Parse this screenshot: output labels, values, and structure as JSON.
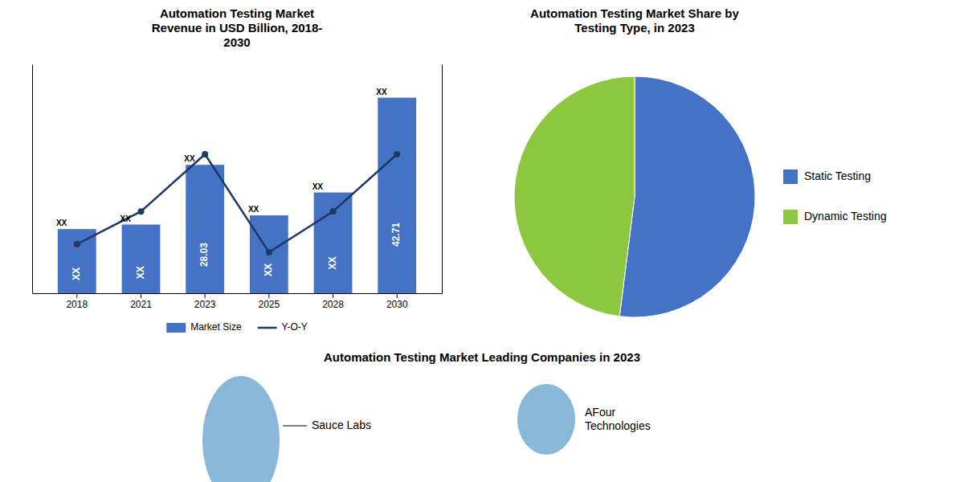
{
  "chart_data": [
    {
      "type": "bar",
      "title": "Automation Testing Market\nRevenue in USD Billion, 2018-\n2030",
      "categories": [
        "2018",
        "2021",
        "2023",
        "2025",
        "2028",
        "2030"
      ],
      "series": [
        {
          "name": "Market Size",
          "type": "bar",
          "color": "#4472C4",
          "values": [
            14,
            15,
            28.03,
            17,
            22,
            42.71
          ],
          "value_labels": [
            "XX",
            "XX",
            "28.03",
            "XX",
            "XX",
            "42.71"
          ]
        },
        {
          "name": "Y-O-Y",
          "type": "line",
          "axis": "y2",
          "color": "#1F3864",
          "marker": "circle",
          "values": [
            6,
            10,
            17,
            5,
            10,
            17
          ],
          "value_labels": [
            "XX",
            "XX",
            "XX",
            "XX",
            "XX",
            "XX"
          ]
        }
      ],
      "ylim": [
        0,
        50
      ],
      "y2lim": [
        0,
        28
      ],
      "tick_labels": "x",
      "data_labels": true,
      "legend": "bottom"
    },
    {
      "type": "pie",
      "title": "Automation Testing Market Share by\nTesting Type, in 2023",
      "categories": [
        "Static Testing",
        "Dynamic Testing"
      ],
      "values": [
        52,
        48
      ],
      "colors": [
        "#4472C4",
        "#8DC63F"
      ],
      "legend": "right"
    },
    {
      "type": "text",
      "title": "Automation Testing Market Leading Companies in 2023",
      "annotations": [
        "Sauce Labs",
        "AFour\nTechnologies"
      ],
      "color": "#7BAFD4"
    }
  ]
}
